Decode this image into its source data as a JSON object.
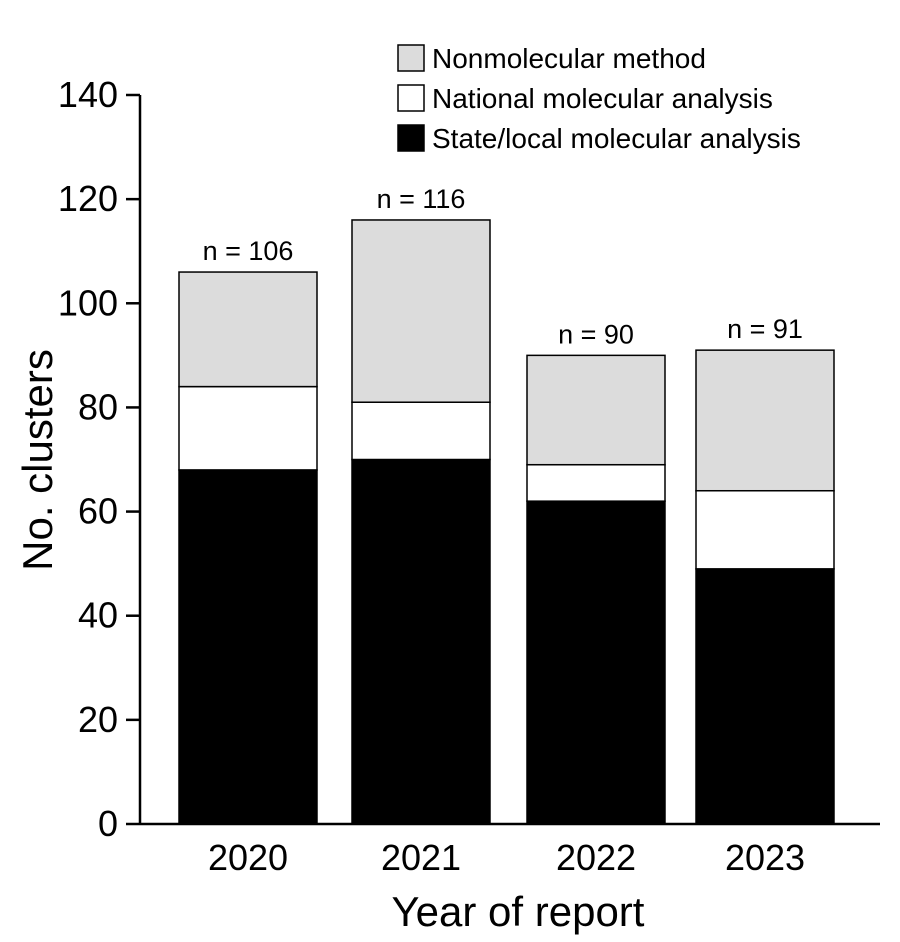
{
  "chart_data": {
    "type": "bar",
    "stacked": true,
    "title": "",
    "xlabel": "Year of report",
    "ylabel": "No. clusters",
    "categories": [
      "2020",
      "2021",
      "2022",
      "2023"
    ],
    "ylim": [
      0,
      140
    ],
    "yticks": [
      0,
      20,
      40,
      60,
      80,
      100,
      120,
      140
    ],
    "grid": false,
    "legend_position": "top-right",
    "series": [
      {
        "name": "State/local molecular analysis",
        "color": "#000000",
        "values": [
          68,
          70,
          62,
          49
        ]
      },
      {
        "name": "National molecular analysis",
        "color": "#ffffff",
        "values": [
          16,
          11,
          7,
          15
        ]
      },
      {
        "name": "Nonmolecular method",
        "color": "#dcdcdc",
        "values": [
          22,
          35,
          21,
          27
        ]
      }
    ],
    "legend_order": [
      "Nonmolecular method",
      "National molecular analysis",
      "State/local molecular analysis"
    ],
    "bar_labels": [
      "n = 106",
      "n = 116",
      "n = 90",
      "n = 91"
    ]
  }
}
